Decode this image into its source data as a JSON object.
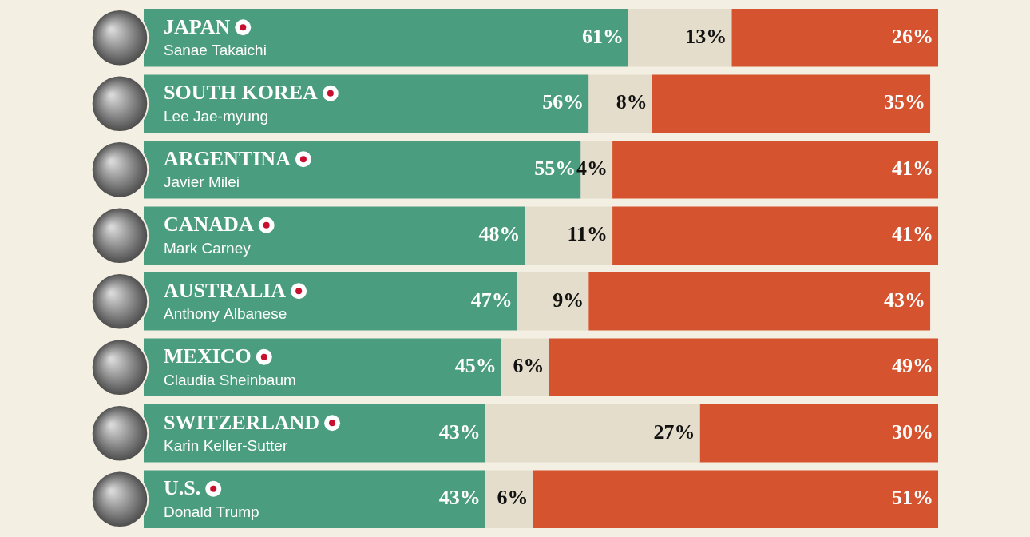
{
  "chart_data": {
    "type": "bar",
    "orientation": "horizontal",
    "stacked": true,
    "data_labels": true,
    "tick_labels": false,
    "grid": false,
    "categories": [
      "JAPAN",
      "SOUTH KOREA",
      "ARGENTINA",
      "CANADA",
      "AUSTRALIA",
      "MEXICO",
      "SWITZERLAND",
      "U.S."
    ],
    "leaders": [
      "Sanae Takaichi",
      "Lee Jae-myung",
      "Javier Milei",
      "Mark Carney",
      "Anthony Albanese",
      "Claudia Sheinbaum",
      "Karin Keller-Sutter",
      "Donald Trump"
    ],
    "xlim": [
      0,
      100
    ],
    "series": [
      {
        "color": "#4b9d7f",
        "values": [
          61,
          56,
          55,
          48,
          47,
          45,
          43,
          43
        ],
        "value_labels": [
          "61%",
          "56%",
          "55%",
          "48%",
          "47%",
          "45%",
          "43%",
          "43%"
        ]
      },
      {
        "color": "#e4ddcb",
        "values": [
          13,
          8,
          4,
          11,
          9,
          6,
          27,
          6
        ],
        "value_labels": [
          "13%",
          "8%",
          "4%",
          "11%",
          "9%",
          "6%",
          "27%",
          "6%"
        ]
      },
      {
        "color": "#d5532f",
        "values": [
          26,
          35,
          41,
          41,
          43,
          49,
          30,
          51
        ],
        "value_labels": [
          "26%",
          "35%",
          "41%",
          "41%",
          "43%",
          "49%",
          "30%",
          "51%"
        ]
      }
    ]
  }
}
